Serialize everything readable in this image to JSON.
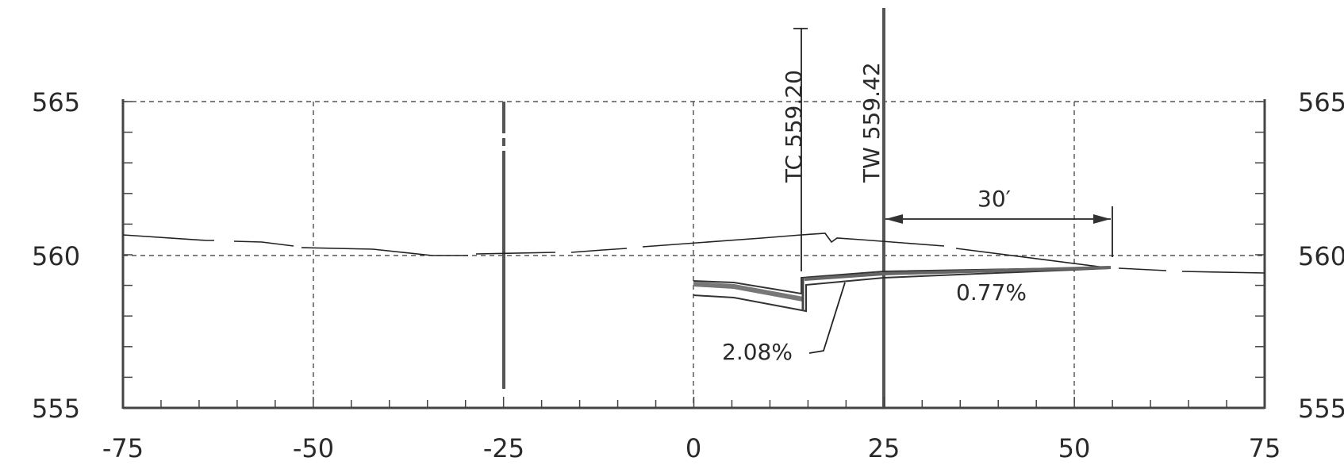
{
  "drawing": {
    "x_ticks": [
      "-75",
      "-50",
      "-25",
      "0",
      "25",
      "50",
      "75"
    ],
    "y_ticks_left": [
      "565",
      "560",
      "555"
    ],
    "y_ticks_right": [
      "565",
      "560",
      "555"
    ],
    "callouts": {
      "tc_label": "TC 559.20",
      "tw_label": "TW 559.42",
      "distance": "30′",
      "slope_right": "0.77%",
      "slope_left": "2.08%"
    }
  },
  "chart_data": {
    "type": "line",
    "xlim": [
      -75,
      75
    ],
    "ylim": [
      555,
      565
    ],
    "grid": true,
    "series": [
      {
        "x": [
          -75,
          -65,
          -57,
          -50,
          -40,
          -30,
          -25,
          -15,
          -10,
          0,
          10,
          14,
          17,
          18,
          19,
          20,
          25,
          35,
          45,
          55,
          65,
          75
        ],
        "y": [
          560.7,
          560.5,
          560.5,
          560.3,
          560.2,
          560.0,
          560.1,
          560.1,
          560.2,
          560.4,
          560.6,
          560.7,
          560.7,
          560.6,
          560.5,
          560.6,
          560.5,
          560.2,
          559.9,
          559.6,
          559.5,
          559.4
        ]
      },
      {
        "x": [
          0,
          14,
          14,
          25,
          55
        ],
        "y": [
          559.0,
          558.5,
          559.2,
          559.42,
          559.65
        ]
      }
    ]
  }
}
